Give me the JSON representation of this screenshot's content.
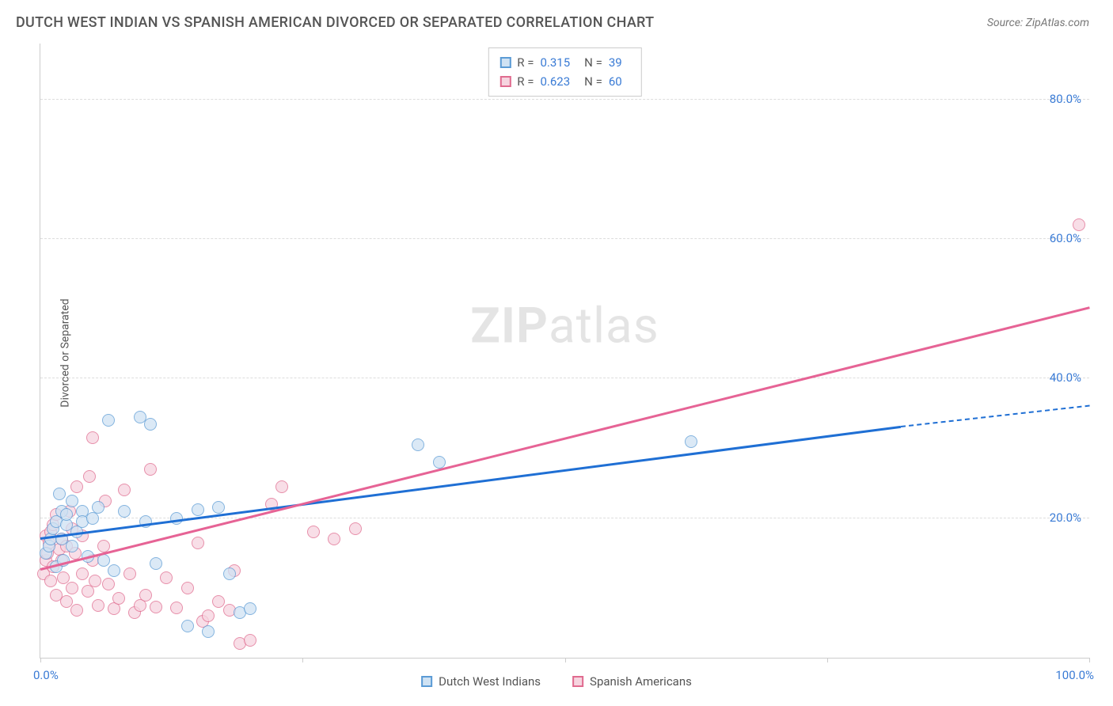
{
  "header": {
    "title": "DUTCH WEST INDIAN VS SPANISH AMERICAN DIVORCED OR SEPARATED CORRELATION CHART",
    "source": "Source: ZipAtlas.com"
  },
  "watermark": {
    "bold": "ZIP",
    "rest": "atlas"
  },
  "chart": {
    "type": "scatter-with-regression",
    "ylabel": "Divorced or Separated",
    "xlim": [
      0,
      100
    ],
    "ylim": [
      0,
      88
    ],
    "x_ticks": [
      0,
      25,
      50,
      75,
      100
    ],
    "x_tick_labels": {
      "0": "0.0%",
      "100": "100.0%"
    },
    "y_gridlines": [
      20,
      40,
      60,
      80
    ],
    "y_tick_labels": {
      "20": "20.0%",
      "40": "40.0%",
      "60": "60.0%",
      "80": "80.0%"
    },
    "grid_color": "#dddddd",
    "axis_color": "#cccccc",
    "tick_label_color": "#3a7bd5",
    "background_color": "#ffffff",
    "marker_radius": 8,
    "marker_opacity": 0.75,
    "series": [
      {
        "name": "Dutch West Indians",
        "color_stroke": "#5b9bd5",
        "color_fill": "#cfe2f3",
        "trend_color": "#1f6fd4",
        "R": "0.315",
        "N": "39",
        "regression": {
          "x1": 0,
          "y1": 17,
          "x2": 82,
          "y2": 33,
          "dash_extend_to_x": 100,
          "dash_extend_to_y": 36
        },
        "points": [
          [
            0.5,
            15
          ],
          [
            0.8,
            16
          ],
          [
            1,
            17
          ],
          [
            1.2,
            18.5
          ],
          [
            1.5,
            19.5
          ],
          [
            1.5,
            13
          ],
          [
            1.8,
            23.5
          ],
          [
            2,
            17
          ],
          [
            2,
            21
          ],
          [
            2.2,
            14
          ],
          [
            2.5,
            19
          ],
          [
            2.5,
            20.5
          ],
          [
            3,
            16
          ],
          [
            3,
            22.5
          ],
          [
            3.5,
            18
          ],
          [
            4,
            21
          ],
          [
            4,
            19.5
          ],
          [
            4.5,
            14.5
          ],
          [
            5,
            20
          ],
          [
            5.5,
            21.5
          ],
          [
            6,
            14
          ],
          [
            6.5,
            34
          ],
          [
            7,
            12.5
          ],
          [
            8,
            21
          ],
          [
            9.5,
            34.5
          ],
          [
            10,
            19.5
          ],
          [
            10.5,
            33.5
          ],
          [
            11,
            13.5
          ],
          [
            13,
            20
          ],
          [
            14,
            4.5
          ],
          [
            15,
            21.2
          ],
          [
            16,
            3.8
          ],
          [
            17,
            21.5
          ],
          [
            18,
            12
          ],
          [
            19,
            6.5
          ],
          [
            20,
            7
          ],
          [
            36,
            30.5
          ],
          [
            38,
            28
          ],
          [
            62,
            31
          ]
        ]
      },
      {
        "name": "Spanish Americans",
        "color_stroke": "#e06b8f",
        "color_fill": "#f6d4df",
        "trend_color": "#e66395",
        "R": "0.623",
        "N": "60",
        "regression": {
          "x1": 0,
          "y1": 12.5,
          "x2": 100,
          "y2": 50
        },
        "points": [
          [
            0.3,
            12
          ],
          [
            0.5,
            14
          ],
          [
            0.5,
            17.5
          ],
          [
            0.7,
            15
          ],
          [
            0.8,
            16.5
          ],
          [
            1,
            11
          ],
          [
            1,
            18
          ],
          [
            1.2,
            19
          ],
          [
            1.2,
            13
          ],
          [
            1.5,
            20.5
          ],
          [
            1.5,
            9
          ],
          [
            1.8,
            15.5
          ],
          [
            2,
            14
          ],
          [
            2,
            17
          ],
          [
            2.2,
            11.5
          ],
          [
            2.5,
            16
          ],
          [
            2.5,
            8
          ],
          [
            2.8,
            21
          ],
          [
            3,
            18.5
          ],
          [
            3,
            10
          ],
          [
            3.3,
            15
          ],
          [
            3.5,
            6.8
          ],
          [
            3.5,
            24.5
          ],
          [
            4,
            17.5
          ],
          [
            4,
            12
          ],
          [
            4.5,
            9.5
          ],
          [
            4.7,
            26
          ],
          [
            5,
            31.5
          ],
          [
            5,
            14
          ],
          [
            5.2,
            11
          ],
          [
            5.5,
            7.5
          ],
          [
            6,
            16
          ],
          [
            6.2,
            22.5
          ],
          [
            6.5,
            10.5
          ],
          [
            7,
            7
          ],
          [
            7.5,
            8.5
          ],
          [
            8,
            24
          ],
          [
            8.5,
            12
          ],
          [
            9,
            6.5
          ],
          [
            9.5,
            7.5
          ],
          [
            10,
            9
          ],
          [
            10.5,
            27
          ],
          [
            11,
            7.3
          ],
          [
            12,
            11.5
          ],
          [
            13,
            7.2
          ],
          [
            14,
            10
          ],
          [
            15,
            16.5
          ],
          [
            15.5,
            5.2
          ],
          [
            16,
            6
          ],
          [
            17,
            8
          ],
          [
            18,
            6.8
          ],
          [
            18.5,
            12.5
          ],
          [
            19,
            2
          ],
          [
            20,
            2.5
          ],
          [
            22,
            22
          ],
          [
            23,
            24.5
          ],
          [
            26,
            18
          ],
          [
            28,
            17
          ],
          [
            30,
            18.5
          ],
          [
            99,
            62
          ]
        ]
      }
    ]
  },
  "legend_bottom": [
    {
      "label": "Dutch West Indians",
      "stroke": "#5b9bd5",
      "fill": "#cfe2f3"
    },
    {
      "label": "Spanish Americans",
      "stroke": "#e06b8f",
      "fill": "#f6d4df"
    }
  ]
}
